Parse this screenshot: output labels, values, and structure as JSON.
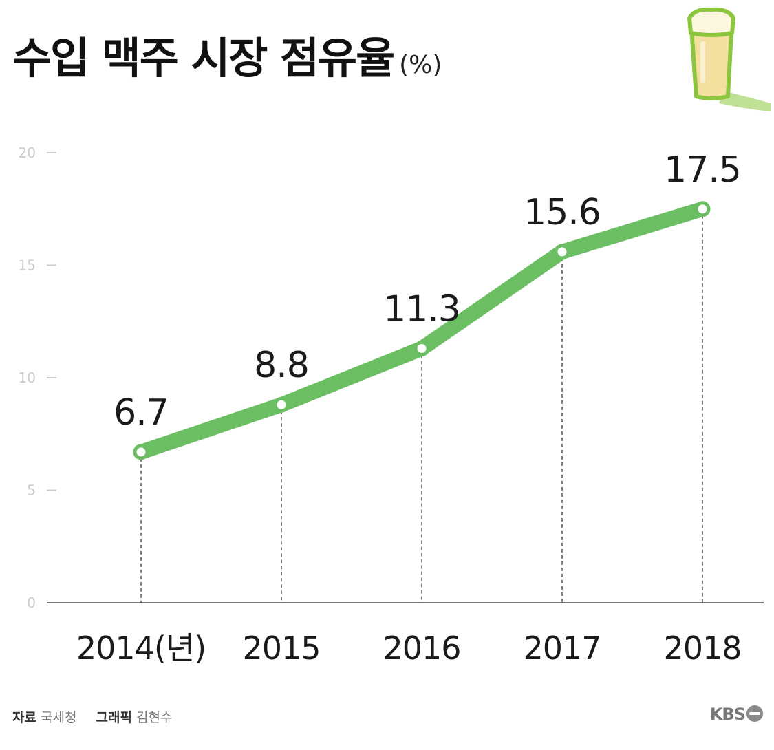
{
  "header": {
    "title": "수입 맥주 시장 점유율",
    "unit": "(%)"
  },
  "icons": {
    "beer": "beer-glass-icon",
    "logo": "kbs-logo-icon"
  },
  "colors": {
    "line": "#6cbe63",
    "axis": "#777777",
    "tick_label": "#cccccc",
    "beer_fill": "#f3df9e",
    "beer_foam": "#fbf6dd",
    "beer_outline": "#8cc63f"
  },
  "chart_data": {
    "type": "line",
    "categories": [
      "2014(년)",
      "2015",
      "2016",
      "2017",
      "2018"
    ],
    "series": [
      {
        "values": [
          6.7,
          8.8,
          11.3,
          15.6,
          17.5
        ],
        "labels": [
          "6.7",
          "8.8",
          "11.3",
          "15.6",
          "17.5"
        ]
      }
    ],
    "y_ticks": [
      "0",
      "5",
      "10",
      "15",
      "20"
    ],
    "ylim": [
      0,
      20
    ],
    "grid": false
  },
  "footer": {
    "source_label": "자료",
    "source": "국세청",
    "graphic_label": "그래픽",
    "graphic": "김현수",
    "logo_text": "KBS"
  }
}
